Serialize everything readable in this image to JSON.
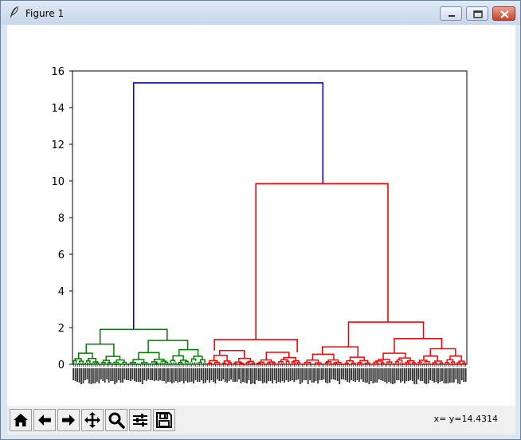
{
  "window": {
    "title": "Figure 1",
    "icons": [
      "feather-icon",
      "minimize-icon",
      "maximize-icon",
      "close-icon"
    ]
  },
  "toolbar": {
    "buttons": [
      {
        "name": "home",
        "icon": "home-icon"
      },
      {
        "name": "back",
        "icon": "arrow-left-icon"
      },
      {
        "name": "forward",
        "icon": "arrow-right-icon"
      },
      {
        "name": "pan",
        "icon": "move-icon"
      },
      {
        "name": "zoom",
        "icon": "magnifier-icon"
      },
      {
        "name": "subplots",
        "icon": "sliders-icon"
      },
      {
        "name": "save",
        "icon": "floppy-icon"
      }
    ],
    "coords": "x= y=14.4314"
  },
  "chart_data": {
    "type": "dendrogram",
    "ylim": [
      0,
      16
    ],
    "yticks": [
      0,
      2,
      4,
      6,
      8,
      10,
      12,
      14,
      16
    ],
    "leaf_count_approx": 200,
    "leaf_labels_legible": false,
    "colors": {
      "left_cluster": "#008000",
      "right_cluster": "#ff0000",
      "root_link": "#0000ff"
    },
    "links": [
      {
        "color": "#0000ff",
        "x": [
          0.155,
          0.155,
          0.635,
          0.635
        ],
        "y": [
          1.9,
          15.35,
          15.35,
          9.85
        ]
      },
      {
        "color": "#ff0000",
        "x": [
          0.465,
          0.465,
          0.8,
          0.8
        ],
        "y": [
          1.35,
          9.85,
          9.85,
          2.3
        ]
      },
      {
        "color": "#008000",
        "x": [
          0.07,
          0.07,
          0.24,
          0.24
        ],
        "y": [
          1.1,
          1.9,
          1.9,
          1.3
        ]
      },
      {
        "color": "#ff0000",
        "x": [
          0.36,
          0.36,
          0.57,
          0.57
        ],
        "y": [
          0.75,
          1.35,
          1.35,
          0.65
        ]
      },
      {
        "color": "#ff0000",
        "x": [
          0.7,
          0.7,
          0.89,
          0.89
        ],
        "y": [
          0.95,
          2.3,
          2.3,
          1.4
        ]
      }
    ],
    "cluster_spans": [
      {
        "color": "#008000",
        "x_range": [
          0.0,
          0.34
        ],
        "height": 1.9
      },
      {
        "color": "#ff0000",
        "x_range": [
          0.34,
          0.58
        ],
        "height": 1.35
      },
      {
        "color": "#ff0000",
        "x_range": [
          0.58,
          1.0
        ],
        "height": 2.3
      }
    ]
  }
}
